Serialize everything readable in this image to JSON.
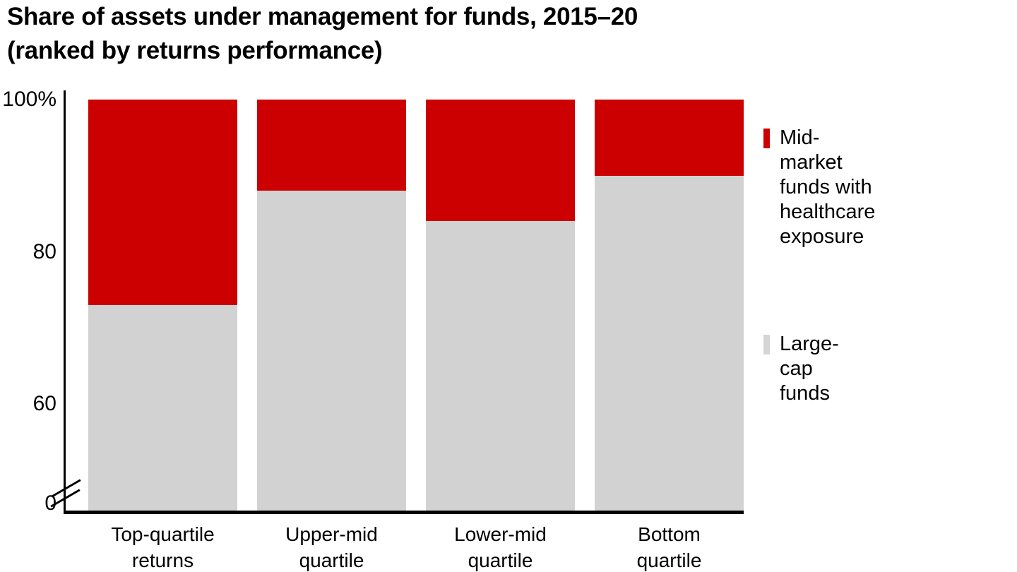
{
  "title": {
    "line1": "Share of assets under management for funds, 2015–20",
    "line2": "(ranked by returns performance)"
  },
  "chart_data": {
    "type": "bar",
    "stacked": true,
    "title": "Share of assets under management for funds, 2015–20 (ranked by returns performance)",
    "unit": "%",
    "categories": [
      "Top-quartile\nreturns",
      "Upper-mid\nquartile",
      "Lower-mid\nquartile",
      "Bottom\nquartile"
    ],
    "series": [
      {
        "name": "Large-cap funds",
        "color": "#d2d2d2",
        "values": [
          73,
          88,
          84,
          90
        ]
      },
      {
        "name": "Mid-market funds with healthcare exposure",
        "color": "#cc0000",
        "values": [
          27,
          12,
          16,
          10
        ]
      }
    ],
    "ylim": [
      0,
      100
    ],
    "grid": false,
    "y_axis": {
      "ticks": [
        {
          "label": "100%",
          "value": 100
        },
        {
          "label": "80",
          "value": 80
        },
        {
          "label": "60",
          "value": 60
        },
        {
          "label": "0",
          "value": 0
        }
      ],
      "axis_break_below": 60
    },
    "legend_position": "right",
    "legend": [
      {
        "label": "Mid-market funds with\nhealthcare exposure",
        "color": "#cc0000"
      },
      {
        "label": "Large-cap funds",
        "color": "#d5d5d5"
      }
    ],
    "colors": {
      "accent_red": "#cc0000",
      "neutral_gray": "#d2d2d2",
      "axis_black": "#000000",
      "background": "#ffffff"
    }
  }
}
